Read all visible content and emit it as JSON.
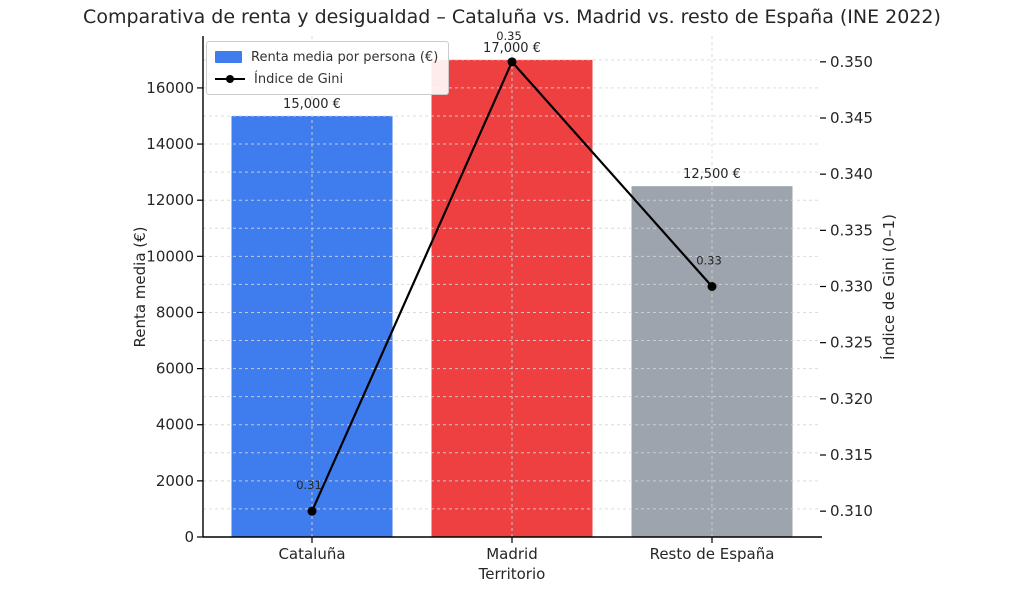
{
  "chart_data": {
    "type": "bar",
    "title": "Comparativa de renta y desigualdad – Cataluña vs. Madrid vs. resto de España (INE 2022)",
    "xlabel": "Territorio",
    "ylabel_left": "Renta media (€)",
    "ylabel_right": "Índice de Gini (0–1)",
    "categories": [
      "Cataluña",
      "Madrid",
      "Resto de España"
    ],
    "series": [
      {
        "name": "Renta media por persona (€)",
        "kind": "bar",
        "axis": "left",
        "values": [
          15000,
          17000,
          12500
        ],
        "value_labels": [
          "15,000 €",
          "17,000 €",
          "12,500 €"
        ],
        "bar_colors": [
          "#3f7def",
          "#ee4040",
          "#9da4ad"
        ]
      },
      {
        "name": "Índice de Gini",
        "kind": "line",
        "axis": "right",
        "values": [
          0.31,
          0.35,
          0.33
        ],
        "value_labels": [
          "0.31",
          "0.35",
          "0.33"
        ],
        "color": "#000000"
      }
    ],
    "left_axis": {
      "min": 0,
      "max": 17850,
      "ticks": [
        0,
        2000,
        4000,
        6000,
        8000,
        10000,
        12000,
        14000,
        16000
      ]
    },
    "right_axis": {
      "min": 0.3077,
      "max": 0.3523,
      "ticks": [
        0.31,
        0.315,
        0.32,
        0.325,
        0.33,
        0.335,
        0.34,
        0.345,
        0.35
      ]
    },
    "grid": {
      "on": true,
      "style": "dashed",
      "color": "#d6d6d6",
      "horizontal_step": 1000
    },
    "legend": {
      "position": "upper left"
    }
  }
}
